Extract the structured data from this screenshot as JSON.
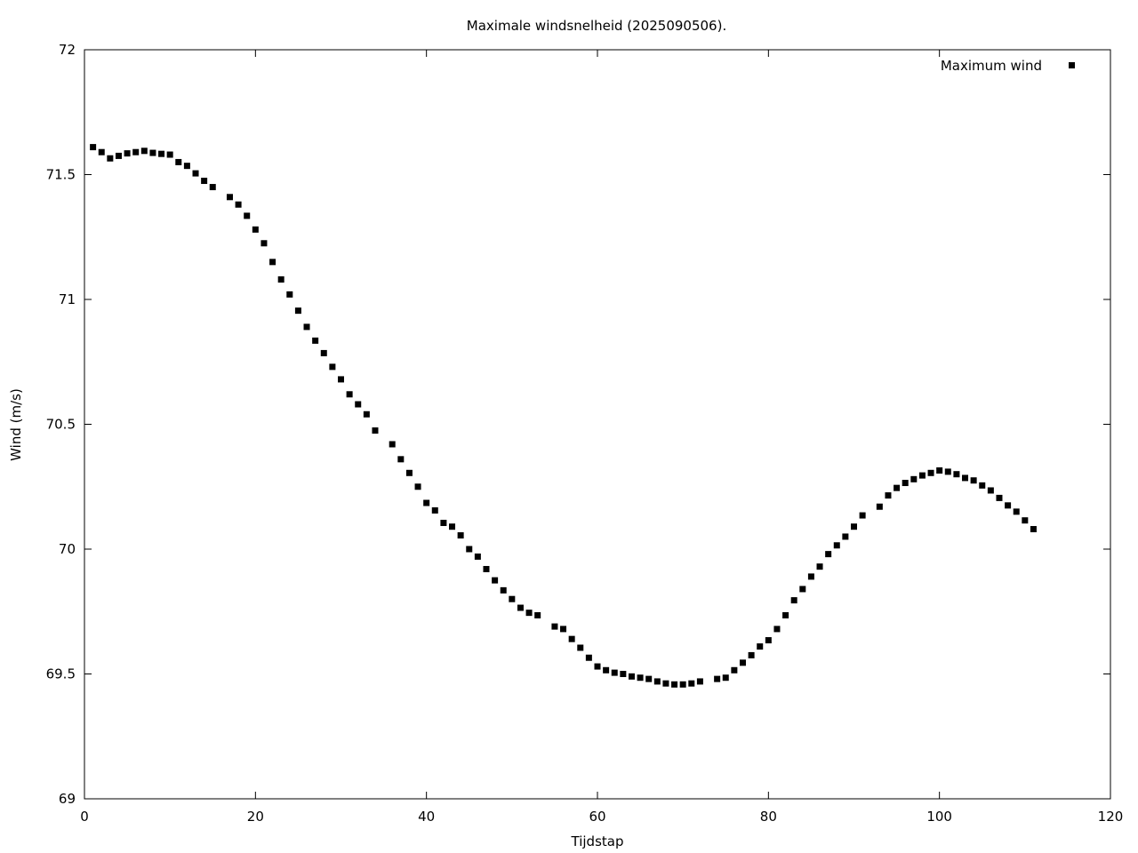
{
  "chart_data": {
    "type": "scatter",
    "title": "Maximale windsnelheid (2025090506).",
    "xlabel": "Tijdstap",
    "ylabel": "Wind (m/s)",
    "xlim": [
      0,
      120
    ],
    "ylim": [
      69,
      72
    ],
    "xticks": [
      0,
      20,
      40,
      60,
      80,
      100,
      120
    ],
    "yticks": [
      69,
      69.5,
      70,
      70.5,
      71,
      71.5,
      72
    ],
    "xtick_labels": [
      "0",
      "20",
      "40",
      "60",
      "80",
      "100",
      "120"
    ],
    "ytick_labels": [
      "69",
      "69.5",
      "70",
      "70.5",
      "71",
      "71.5",
      "72"
    ],
    "grid": false,
    "legend_position": "top-right",
    "marker_color": "#000000",
    "series": [
      {
        "name": "Maximum wind",
        "x": [
          1,
          2,
          3,
          4,
          5,
          6,
          7,
          8,
          9,
          10,
          11,
          12,
          13,
          14,
          15,
          17,
          18,
          19,
          20,
          21,
          22,
          23,
          24,
          25,
          26,
          27,
          28,
          29,
          30,
          31,
          32,
          33,
          34,
          36,
          37,
          38,
          39,
          40,
          41,
          42,
          43,
          44,
          45,
          46,
          47,
          48,
          49,
          50,
          51,
          52,
          53,
          55,
          56,
          57,
          58,
          59,
          60,
          61,
          62,
          63,
          64,
          65,
          66,
          67,
          68,
          69,
          70,
          71,
          72,
          74,
          75,
          76,
          77,
          78,
          79,
          80,
          81,
          82,
          83,
          84,
          85,
          86,
          87,
          88,
          89,
          90,
          91,
          93,
          94,
          95,
          96,
          97,
          98,
          99,
          100,
          101,
          102,
          103,
          104,
          105,
          106,
          107,
          108,
          109,
          110,
          111
        ],
        "y": [
          71.61,
          71.59,
          71.565,
          71.575,
          71.585,
          71.59,
          71.595,
          71.587,
          71.583,
          71.58,
          71.55,
          71.535,
          71.505,
          71.475,
          71.45,
          71.41,
          71.38,
          71.335,
          71.28,
          71.225,
          71.15,
          71.08,
          71.02,
          70.955,
          70.89,
          70.835,
          70.785,
          70.73,
          70.68,
          70.62,
          70.58,
          70.54,
          70.475,
          70.42,
          70.36,
          70.305,
          70.25,
          70.185,
          70.155,
          70.105,
          70.09,
          70.055,
          70.0,
          69.97,
          69.92,
          69.875,
          69.835,
          69.8,
          69.765,
          69.745,
          69.735,
          69.69,
          69.68,
          69.64,
          69.605,
          69.565,
          69.53,
          69.515,
          69.505,
          69.5,
          69.49,
          69.485,
          69.48,
          69.47,
          69.462,
          69.458,
          69.458,
          69.462,
          69.47,
          69.48,
          69.485,
          69.515,
          69.545,
          69.575,
          69.61,
          69.635,
          69.68,
          69.735,
          69.795,
          69.84,
          69.89,
          69.93,
          69.98,
          70.015,
          70.05,
          70.09,
          70.135,
          70.17,
          70.215,
          70.245,
          70.265,
          70.28,
          70.295,
          70.305,
          70.315,
          70.31,
          70.3,
          70.285,
          70.275,
          70.255,
          70.235,
          70.205,
          70.175,
          70.15,
          70.115,
          70.08
        ]
      }
    ]
  }
}
